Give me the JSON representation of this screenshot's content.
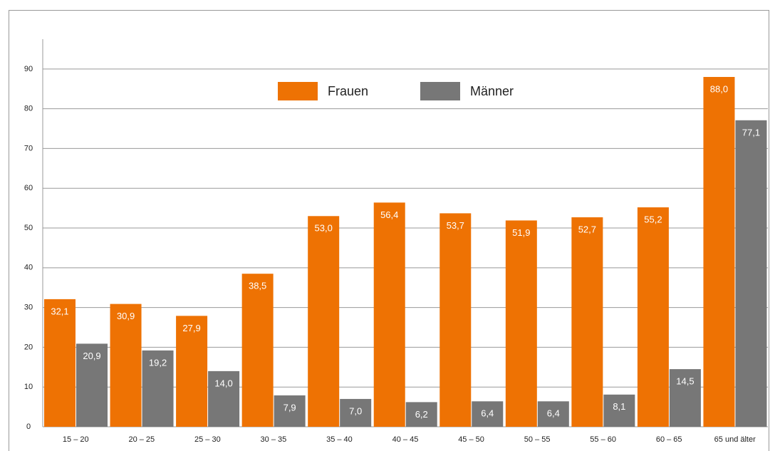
{
  "chart_data": {
    "type": "bar",
    "categories": [
      "15 – 20",
      "20 – 25",
      "25 – 30",
      "30 – 35",
      "35 – 40",
      "40 – 45",
      "45 – 50",
      "50 – 55",
      "55 – 60",
      "60 – 65",
      "65 und älter"
    ],
    "series": [
      {
        "name": "Frauen",
        "color": "#ee7203",
        "values": [
          32.1,
          30.9,
          27.9,
          38.5,
          53.0,
          56.4,
          53.7,
          51.9,
          52.7,
          55.2,
          88.0
        ],
        "value_labels": [
          "32,1",
          "30,9",
          "27,9",
          "38,5",
          "53,0",
          "56,4",
          "53,7",
          "51,9",
          "52,7",
          "55,2",
          "88,0"
        ]
      },
      {
        "name": "Männer",
        "color": "#777777",
        "values": [
          20.9,
          19.2,
          14.0,
          7.9,
          7.0,
          6.2,
          6.4,
          6.4,
          8.1,
          14.5,
          77.1
        ],
        "value_labels": [
          "20,9",
          "19,2",
          "14,0",
          "7,9",
          "7,0",
          "6,2",
          "6,4",
          "6,4",
          "8,1",
          "14,5",
          "77,1"
        ]
      }
    ],
    "ylim": [
      0,
      97.5
    ],
    "yticks": [
      0,
      10,
      20,
      30,
      40,
      50,
      60,
      70,
      80,
      90
    ],
    "grid": true
  }
}
